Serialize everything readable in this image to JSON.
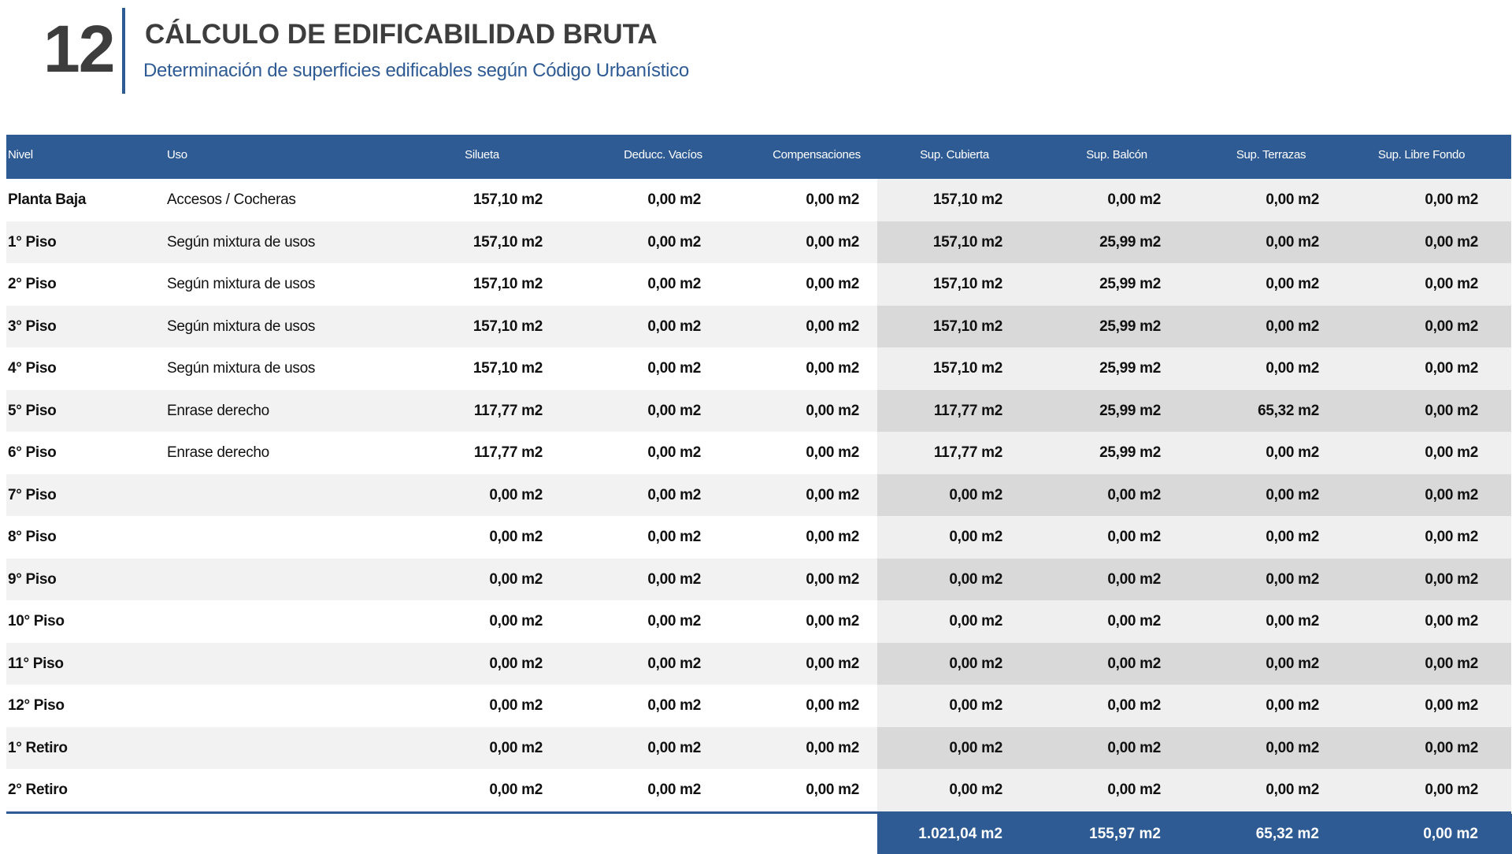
{
  "header": {
    "number": "12",
    "title": "CÁLCULO DE EDIFICABILIDAD BRUTA",
    "subtitle": "Determinación de superficies edificables según Código Urbanístico"
  },
  "table": {
    "columns": [
      "Nivel",
      "Uso",
      "Silueta",
      "Deducc. Vacíos",
      "Compensaciones",
      "Sup. Cubierta",
      "Sup. Balcón",
      "Sup. Terrazas",
      "Sup. Libre Fondo"
    ],
    "rows": [
      [
        "Planta Baja",
        "Accesos / Cocheras",
        "157,10 m2",
        "0,00 m2",
        "0,00 m2",
        "157,10 m2",
        "0,00 m2",
        "0,00 m2",
        "0,00 m2"
      ],
      [
        "1° Piso",
        "Según mixtura de usos",
        "157,10 m2",
        "0,00 m2",
        "0,00 m2",
        "157,10 m2",
        "25,99 m2",
        "0,00 m2",
        "0,00 m2"
      ],
      [
        "2° Piso",
        "Según mixtura de usos",
        "157,10 m2",
        "0,00 m2",
        "0,00 m2",
        "157,10 m2",
        "25,99 m2",
        "0,00 m2",
        "0,00 m2"
      ],
      [
        "3° Piso",
        "Según mixtura de usos",
        "157,10 m2",
        "0,00 m2",
        "0,00 m2",
        "157,10 m2",
        "25,99 m2",
        "0,00 m2",
        "0,00 m2"
      ],
      [
        "4° Piso",
        "Según mixtura de usos",
        "157,10 m2",
        "0,00 m2",
        "0,00 m2",
        "157,10 m2",
        "25,99 m2",
        "0,00 m2",
        "0,00 m2"
      ],
      [
        "5° Piso",
        "Enrase derecho",
        "117,77 m2",
        "0,00 m2",
        "0,00 m2",
        "117,77 m2",
        "25,99 m2",
        "65,32 m2",
        "0,00 m2"
      ],
      [
        "6° Piso",
        "Enrase derecho",
        "117,77 m2",
        "0,00 m2",
        "0,00 m2",
        "117,77 m2",
        "25,99 m2",
        "0,00 m2",
        "0,00 m2"
      ],
      [
        "7° Piso",
        "",
        "0,00 m2",
        "0,00 m2",
        "0,00 m2",
        "0,00 m2",
        "0,00 m2",
        "0,00 m2",
        "0,00 m2"
      ],
      [
        "8° Piso",
        "",
        "0,00 m2",
        "0,00 m2",
        "0,00 m2",
        "0,00 m2",
        "0,00 m2",
        "0,00 m2",
        "0,00 m2"
      ],
      [
        "9° Piso",
        "",
        "0,00 m2",
        "0,00 m2",
        "0,00 m2",
        "0,00 m2",
        "0,00 m2",
        "0,00 m2",
        "0,00 m2"
      ],
      [
        "10° Piso",
        "",
        "0,00 m2",
        "0,00 m2",
        "0,00 m2",
        "0,00 m2",
        "0,00 m2",
        "0,00 m2",
        "0,00 m2"
      ],
      [
        "11° Piso",
        "",
        "0,00 m2",
        "0,00 m2",
        "0,00 m2",
        "0,00 m2",
        "0,00 m2",
        "0,00 m2",
        "0,00 m2"
      ],
      [
        "12° Piso",
        "",
        "0,00 m2",
        "0,00 m2",
        "0,00 m2",
        "0,00 m2",
        "0,00 m2",
        "0,00 m2",
        "0,00 m2"
      ],
      [
        "1° Retiro",
        "",
        "0,00 m2",
        "0,00 m2",
        "0,00 m2",
        "0,00 m2",
        "0,00 m2",
        "0,00 m2",
        "0,00 m2"
      ],
      [
        "2° Retiro",
        "",
        "0,00 m2",
        "0,00 m2",
        "0,00 m2",
        "0,00 m2",
        "0,00 m2",
        "0,00 m2",
        "0,00 m2"
      ]
    ],
    "totals": [
      "1.021,04 m2",
      "155,97 m2",
      "65,32 m2",
      "0,00 m2"
    ]
  }
}
